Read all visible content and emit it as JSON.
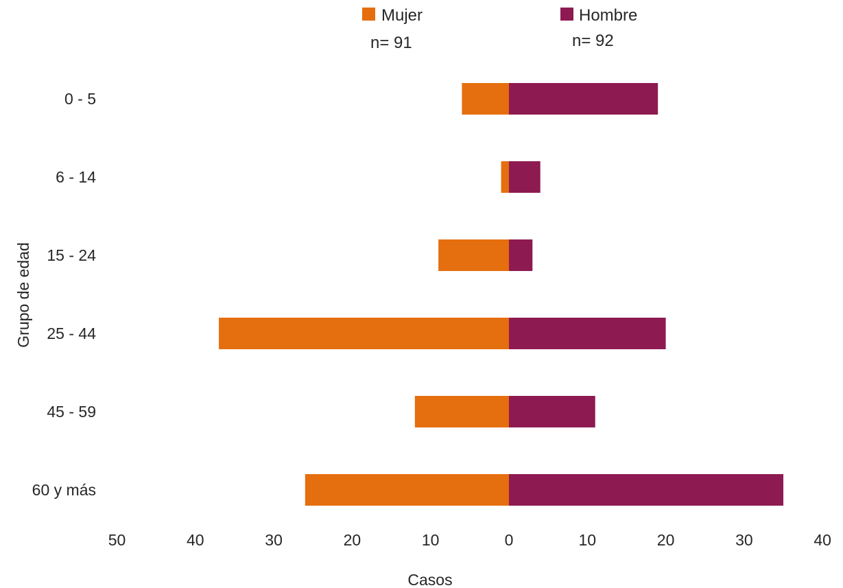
{
  "chart_data": {
    "type": "bar",
    "orientation": "horizontal",
    "layout": "population-pyramid",
    "categories": [
      "0 - 5",
      "6 - 14",
      "15 - 24",
      "25 - 44",
      "45 - 59",
      "60 y más"
    ],
    "series": [
      {
        "name": "Mujer",
        "n_label": "n= 91",
        "side": "left",
        "color": "#E56E0E",
        "values": [
          6,
          1,
          9,
          37,
          12,
          26
        ]
      },
      {
        "name": "Hombre",
        "n_label": "n= 92",
        "side": "right",
        "color": "#8E1A52",
        "values": [
          19,
          4,
          3,
          20,
          11,
          35
        ]
      }
    ],
    "xlabel": "Casos",
    "ylabel": "Grupo de edad",
    "xlim": [
      -50,
      40
    ],
    "x_ticks": [
      -50,
      -40,
      -30,
      -20,
      -10,
      0,
      10,
      20,
      30,
      40
    ],
    "x_tick_labels": [
      "50",
      "40",
      "30",
      "20",
      "10",
      "0",
      "10",
      "20",
      "30",
      "40"
    ],
    "grid": false,
    "legend_position": "top"
  }
}
